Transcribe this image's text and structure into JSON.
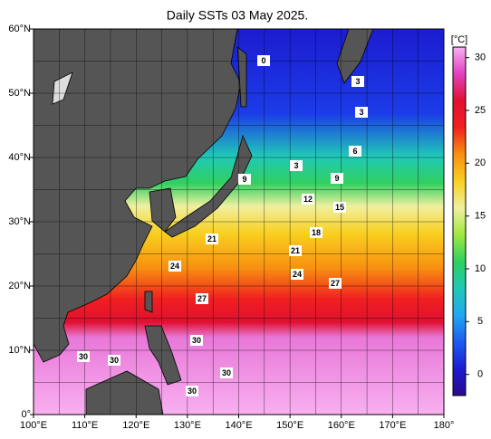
{
  "title": "Daily SSTs 03 May 2025.",
  "map": {
    "lon_range": [
      100,
      180
    ],
    "lat_range": [
      0,
      60
    ],
    "lon_ticks": [
      {
        "value": 100,
        "label": "100°E"
      },
      {
        "value": 110,
        "label": "110°E"
      },
      {
        "value": 120,
        "label": "120°E"
      },
      {
        "value": 130,
        "label": "130°E"
      },
      {
        "value": 140,
        "label": "140°E"
      },
      {
        "value": 150,
        "label": "150°E"
      },
      {
        "value": 160,
        "label": "160°E"
      },
      {
        "value": 170,
        "label": "170°E"
      },
      {
        "value": 180,
        "label": "180°"
      }
    ],
    "lat_ticks": [
      {
        "value": 0,
        "label": "0°"
      },
      {
        "value": 10,
        "label": "10°N"
      },
      {
        "value": 20,
        "label": "20°N"
      },
      {
        "value": 30,
        "label": "30°N"
      },
      {
        "value": 40,
        "label": "40°N"
      },
      {
        "value": 50,
        "label": "50°N"
      },
      {
        "value": 60,
        "label": "60°N"
      }
    ]
  },
  "colorbar": {
    "label": "[°C]",
    "range": [
      -2,
      31
    ],
    "ticks": [
      0,
      5,
      10,
      15,
      20,
      25,
      30
    ],
    "colors": [
      "#2a0a8c",
      "#1c1cd0",
      "#1c5cf0",
      "#20a8f0",
      "#20c8b8",
      "#30d060",
      "#a0e840",
      "#f0f0a0",
      "#f8d020",
      "#f89010",
      "#f02020",
      "#e01030",
      "#e040c0",
      "#f8b0f0"
    ]
  },
  "contour_labels": [
    0,
    3,
    3,
    6,
    3,
    9,
    9,
    12,
    15,
    18,
    21,
    21,
    24,
    24,
    27,
    27,
    30,
    30,
    30,
    30,
    30
  ]
}
